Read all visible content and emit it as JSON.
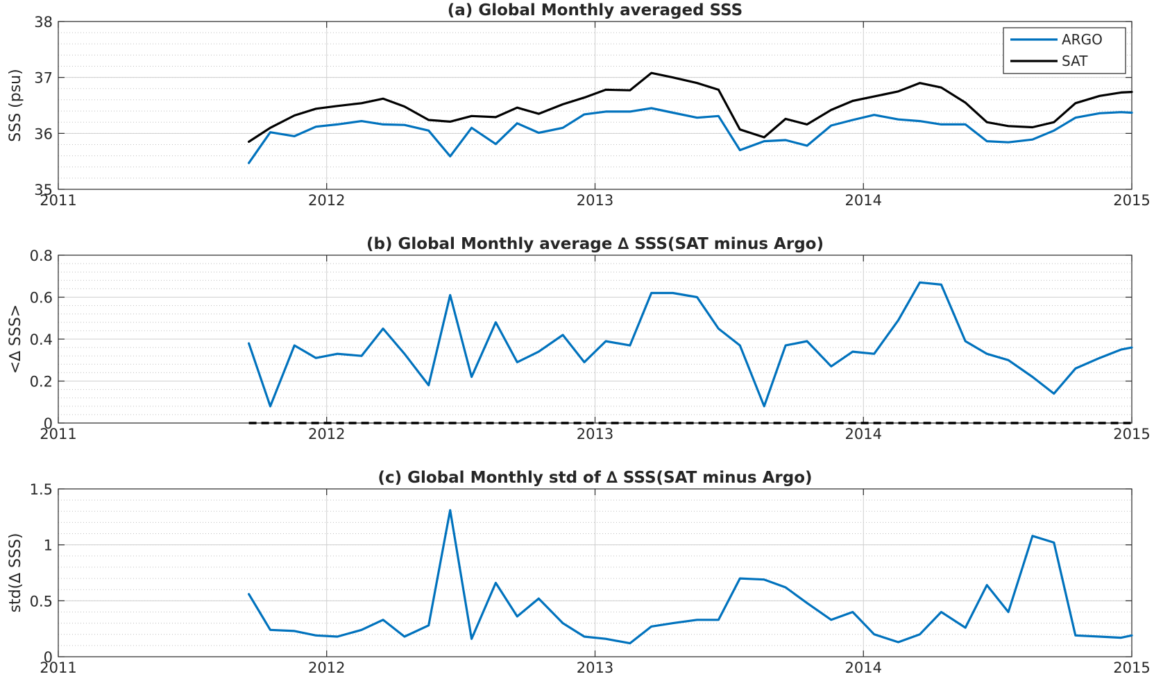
{
  "colors": {
    "argo": "#0072BD",
    "sat": "#000000",
    "axis": "#262626",
    "grid": "#cfcfcf",
    "minor_grid": "#bdbdbd"
  },
  "chart_data": [
    {
      "type": "line",
      "title": "(a) Global Monthly averaged SSS",
      "xlabel": "",
      "ylabel": "SSS (psu)",
      "xlim": [
        2011,
        2015
      ],
      "ylim": [
        35,
        38
      ],
      "xticks": [
        "2011",
        "2012",
        "2013",
        "2014",
        "2015"
      ],
      "yticks": [
        "35",
        "36",
        "37",
        "38"
      ],
      "grid": true,
      "legend": {
        "placement": "top-right",
        "entries": [
          "ARGO",
          "SAT"
        ]
      },
      "x": [
        2011.71,
        2011.79,
        2011.88,
        2011.96,
        2012.04,
        2012.13,
        2012.21,
        2012.29,
        2012.38,
        2012.46,
        2012.54,
        2012.63,
        2012.71,
        2012.79,
        2012.88,
        2012.96,
        2013.04,
        2013.13,
        2013.21,
        2013.29,
        2013.38,
        2013.46,
        2013.54,
        2013.63,
        2013.71,
        2013.79,
        2013.88,
        2013.96,
        2014.04,
        2014.13,
        2014.21,
        2014.29,
        2014.38,
        2014.46,
        2014.54,
        2014.63,
        2014.71,
        2014.79,
        2014.88,
        2014.96,
        2015.0
      ],
      "series": [
        {
          "name": "ARGO",
          "color": "#0072BD",
          "values": [
            35.47,
            36.02,
            35.95,
            36.12,
            36.16,
            36.22,
            36.16,
            36.15,
            36.05,
            35.59,
            36.1,
            35.81,
            36.18,
            36.01,
            36.1,
            36.34,
            36.39,
            36.39,
            36.45,
            36.37,
            36.28,
            36.31,
            35.7,
            35.86,
            35.88,
            35.78,
            36.14,
            36.24,
            36.33,
            36.25,
            36.22,
            36.16,
            36.16,
            35.86,
            35.84,
            35.89,
            36.05,
            36.28,
            36.36,
            36.38,
            36.37
          ]
        },
        {
          "name": "SAT",
          "color": "#000000",
          "values": [
            35.85,
            36.1,
            36.32,
            36.44,
            36.49,
            36.54,
            36.62,
            36.48,
            36.24,
            36.21,
            36.31,
            36.29,
            36.46,
            36.35,
            36.52,
            36.64,
            36.78,
            36.77,
            37.08,
            37.0,
            36.9,
            36.78,
            36.07,
            35.93,
            36.26,
            36.16,
            36.42,
            36.58,
            36.66,
            36.75,
            36.9,
            36.82,
            36.55,
            36.2,
            36.13,
            36.11,
            36.2,
            36.54,
            36.67,
            36.73,
            36.74
          ]
        }
      ]
    },
    {
      "type": "line",
      "title": "(b) Global Monthly average ∆ SSS(SAT minus Argo)",
      "xlabel": "",
      "ylabel": "<∆ SSS>",
      "xlim": [
        2011,
        2015
      ],
      "ylim": [
        0,
        0.8
      ],
      "xticks": [
        "2011",
        "2012",
        "2013",
        "2014",
        "2015"
      ],
      "yticks": [
        "0",
        "0.2",
        "0.4",
        "0.6",
        "0.8"
      ],
      "grid": true,
      "zero_line": {
        "y": 0,
        "style": "dashed",
        "color": "#000000",
        "x_start": 2011.71
      },
      "x": [
        2011.71,
        2011.79,
        2011.88,
        2011.96,
        2012.04,
        2012.13,
        2012.21,
        2012.29,
        2012.38,
        2012.46,
        2012.54,
        2012.63,
        2012.71,
        2012.79,
        2012.88,
        2012.96,
        2013.04,
        2013.13,
        2013.21,
        2013.29,
        2013.38,
        2013.46,
        2013.54,
        2013.63,
        2013.71,
        2013.79,
        2013.88,
        2013.96,
        2014.04,
        2014.13,
        2014.21,
        2014.29,
        2014.38,
        2014.46,
        2014.54,
        2014.63,
        2014.71,
        2014.79,
        2014.88,
        2014.96,
        2015.0
      ],
      "series": [
        {
          "color": "#0072BD",
          "values": [
            0.38,
            0.08,
            0.37,
            0.31,
            0.33,
            0.32,
            0.45,
            0.33,
            0.18,
            0.61,
            0.22,
            0.48,
            0.29,
            0.34,
            0.42,
            0.29,
            0.39,
            0.37,
            0.62,
            0.62,
            0.6,
            0.45,
            0.37,
            0.08,
            0.37,
            0.39,
            0.27,
            0.34,
            0.33,
            0.49,
            0.67,
            0.66,
            0.39,
            0.33,
            0.3,
            0.22,
            0.14,
            0.26,
            0.31,
            0.35,
            0.36
          ]
        }
      ]
    },
    {
      "type": "line",
      "title": "(c) Global Monthly std of ∆ SSS(SAT minus Argo)",
      "xlabel": "",
      "ylabel": "std(∆ SSS)",
      "xlim": [
        2011,
        2015
      ],
      "ylim": [
        0,
        1.5
      ],
      "xticks": [
        "2011",
        "2012",
        "2013",
        "2014",
        "2015"
      ],
      "yticks": [
        "0",
        "0.5",
        "1",
        "1.5"
      ],
      "grid": true,
      "x": [
        2011.71,
        2011.79,
        2011.88,
        2011.96,
        2012.04,
        2012.13,
        2012.21,
        2012.29,
        2012.38,
        2012.46,
        2012.54,
        2012.63,
        2012.71,
        2012.79,
        2012.88,
        2012.96,
        2013.04,
        2013.13,
        2013.21,
        2013.29,
        2013.38,
        2013.46,
        2013.54,
        2013.63,
        2013.71,
        2013.79,
        2013.88,
        2013.96,
        2014.04,
        2014.13,
        2014.21,
        2014.29,
        2014.38,
        2014.46,
        2014.54,
        2014.63,
        2014.71,
        2014.79,
        2014.88,
        2014.96,
        2015.0
      ],
      "series": [
        {
          "color": "#0072BD",
          "values": [
            0.56,
            0.24,
            0.23,
            0.19,
            0.18,
            0.24,
            0.33,
            0.18,
            0.28,
            1.31,
            0.16,
            0.66,
            0.36,
            0.52,
            0.3,
            0.18,
            0.16,
            0.12,
            0.27,
            0.3,
            0.33,
            0.33,
            0.7,
            0.69,
            0.62,
            0.48,
            0.33,
            0.4,
            0.2,
            0.13,
            0.2,
            0.4,
            0.26,
            0.64,
            0.4,
            1.08,
            1.02,
            0.19,
            0.18,
            0.17,
            0.19
          ]
        }
      ]
    }
  ]
}
